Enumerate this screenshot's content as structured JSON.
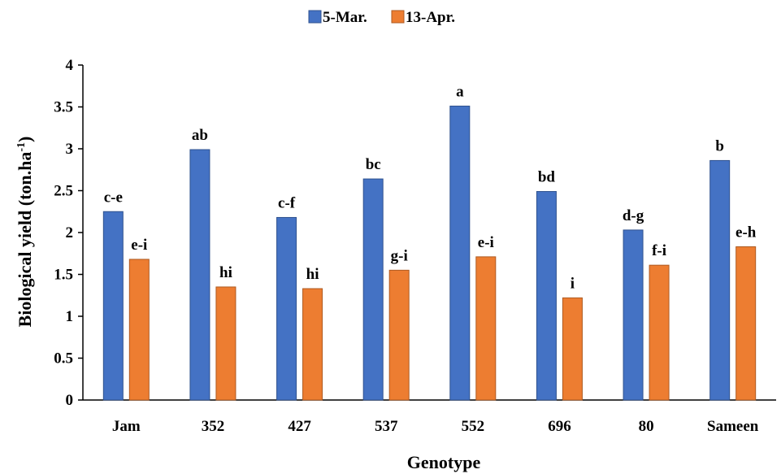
{
  "chart_data": {
    "type": "bar",
    "xlabel": "Genotype",
    "ylabel": "Biological yield (ton.ha",
    "ylabel_sup": "-1",
    "ylabel_end": ")",
    "ylim": [
      0,
      4
    ],
    "yticks": [
      "0",
      "0.5",
      "1",
      "1.5",
      "2",
      "2.5",
      "3",
      "3.5",
      "4"
    ],
    "grid": false,
    "legend_position": "top-center",
    "categories": [
      "Jam",
      "352",
      "427",
      "537",
      "552",
      "696",
      "80",
      "Sameen"
    ],
    "series": [
      {
        "name": "5-Mar.",
        "color": "#4472C4",
        "values": [
          2.25,
          2.99,
          2.18,
          2.64,
          3.51,
          2.49,
          2.03,
          2.86
        ],
        "labels": [
          "c-e",
          "ab",
          "c-f",
          "bc",
          "a",
          "bd",
          "d-g",
          "b"
        ]
      },
      {
        "name": "13-Apr.",
        "color": "#ED7D31",
        "values": [
          1.68,
          1.35,
          1.33,
          1.55,
          1.71,
          1.22,
          1.61,
          1.83
        ],
        "labels": [
          "e-i",
          "hi",
          "hi",
          "g-i",
          "e-i",
          "i",
          "f-i",
          "e-h"
        ]
      }
    ]
  }
}
